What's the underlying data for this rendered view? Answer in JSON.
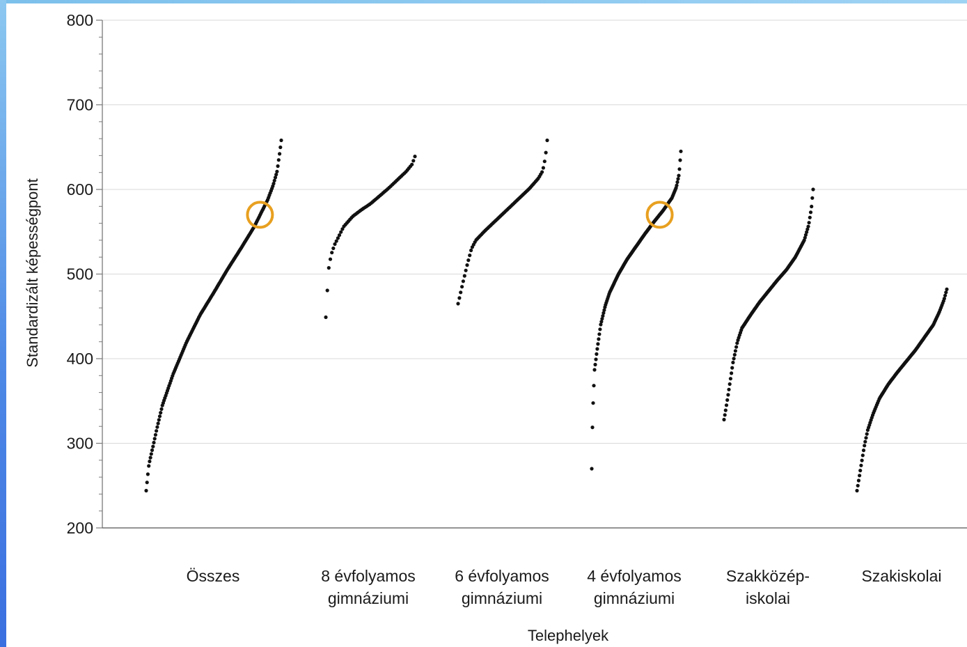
{
  "chart_data": {
    "type": "scatter",
    "xlabel": "Telephelyek",
    "ylabel": "Standardizált képességpont",
    "ylim": [
      200,
      800
    ],
    "yticks": [
      200,
      300,
      400,
      500,
      600,
      700,
      800
    ],
    "grid": true,
    "categories": [
      {
        "lines": [
          "Összes"
        ]
      },
      {
        "lines": [
          "8 évfolyamos",
          "gimnáziumi"
        ]
      },
      {
        "lines": [
          "6 évfolyamos",
          "gimnáziumi"
        ]
      },
      {
        "lines": [
          "4 évfolyamos",
          "gimnáziumi"
        ]
      },
      {
        "lines": [
          "Szakközép-",
          "iskolai"
        ]
      },
      {
        "lines": [
          "Szakiskolai"
        ]
      }
    ],
    "series": [
      {
        "category": 0,
        "min": 244,
        "max": 658,
        "count": 160,
        "curve": [
          [
            0,
            244
          ],
          [
            0.02,
            275
          ],
          [
            0.05,
            296
          ],
          [
            0.08,
            318
          ],
          [
            0.12,
            345
          ],
          [
            0.2,
            382
          ],
          [
            0.3,
            420
          ],
          [
            0.4,
            452
          ],
          [
            0.5,
            478
          ],
          [
            0.6,
            505
          ],
          [
            0.7,
            530
          ],
          [
            0.8,
            556
          ],
          [
            0.85,
            572
          ],
          [
            0.9,
            588
          ],
          [
            0.94,
            605
          ],
          [
            0.97,
            622
          ],
          [
            0.99,
            645
          ],
          [
            1,
            658
          ]
        ]
      },
      {
        "category": 1,
        "min": 449,
        "max": 639,
        "count": 60,
        "curve": [
          [
            0,
            449
          ],
          [
            0.03,
            505
          ],
          [
            0.06,
            523
          ],
          [
            0.1,
            535
          ],
          [
            0.2,
            556
          ],
          [
            0.3,
            568
          ],
          [
            0.4,
            576
          ],
          [
            0.5,
            583
          ],
          [
            0.6,
            592
          ],
          [
            0.7,
            601
          ],
          [
            0.8,
            611
          ],
          [
            0.9,
            621
          ],
          [
            0.97,
            630
          ],
          [
            1,
            639
          ]
        ]
      },
      {
        "category": 2,
        "min": 465,
        "max": 658,
        "count": 70,
        "curve": [
          [
            0,
            465
          ],
          [
            0.05,
            488
          ],
          [
            0.1,
            510
          ],
          [
            0.15,
            530
          ],
          [
            0.2,
            540
          ],
          [
            0.3,
            551
          ],
          [
            0.4,
            561
          ],
          [
            0.5,
            571
          ],
          [
            0.6,
            581
          ],
          [
            0.7,
            591
          ],
          [
            0.8,
            601
          ],
          [
            0.9,
            613
          ],
          [
            0.95,
            622
          ],
          [
            0.98,
            638
          ],
          [
            1,
            658
          ]
        ]
      },
      {
        "category": 3,
        "min": 270,
        "max": 645,
        "count": 130,
        "curve": [
          [
            0,
            270
          ],
          [
            0.01,
            333
          ],
          [
            0.03,
            386
          ],
          [
            0.06,
            410
          ],
          [
            0.1,
            440
          ],
          [
            0.15,
            462
          ],
          [
            0.2,
            478
          ],
          [
            0.3,
            500
          ],
          [
            0.4,
            518
          ],
          [
            0.5,
            533
          ],
          [
            0.6,
            548
          ],
          [
            0.7,
            562
          ],
          [
            0.8,
            575
          ],
          [
            0.9,
            590
          ],
          [
            0.95,
            603
          ],
          [
            0.98,
            618
          ],
          [
            1,
            645
          ]
        ]
      },
      {
        "category": 4,
        "min": 328,
        "max": 600,
        "count": 110,
        "curve": [
          [
            0,
            328
          ],
          [
            0.02,
            340
          ],
          [
            0.05,
            360
          ],
          [
            0.1,
            395
          ],
          [
            0.15,
            420
          ],
          [
            0.2,
            436
          ],
          [
            0.3,
            452
          ],
          [
            0.4,
            467
          ],
          [
            0.5,
            480
          ],
          [
            0.6,
            493
          ],
          [
            0.7,
            505
          ],
          [
            0.8,
            520
          ],
          [
            0.9,
            540
          ],
          [
            0.95,
            558
          ],
          [
            0.98,
            578
          ],
          [
            1,
            600
          ]
        ]
      },
      {
        "category": 5,
        "min": 244,
        "max": 482,
        "count": 110,
        "curve": [
          [
            0,
            244
          ],
          [
            0.04,
            270
          ],
          [
            0.08,
            296
          ],
          [
            0.12,
            316
          ],
          [
            0.18,
            335
          ],
          [
            0.25,
            353
          ],
          [
            0.35,
            370
          ],
          [
            0.45,
            384
          ],
          [
            0.55,
            397
          ],
          [
            0.65,
            410
          ],
          [
            0.75,
            425
          ],
          [
            0.85,
            440
          ],
          [
            0.92,
            456
          ],
          [
            0.97,
            470
          ],
          [
            1,
            482
          ]
        ]
      }
    ],
    "highlights": [
      {
        "category": 0,
        "y": 570,
        "color": "#e8a020"
      },
      {
        "category": 3,
        "y": 570,
        "color": "#e8a020"
      }
    ],
    "colors": {
      "points": "#111111",
      "grid": "#d9d9d9",
      "axis": "#7a7a7a",
      "frame_left": "#4f8ae6",
      "frame_top": "#9fd3f4"
    }
  }
}
